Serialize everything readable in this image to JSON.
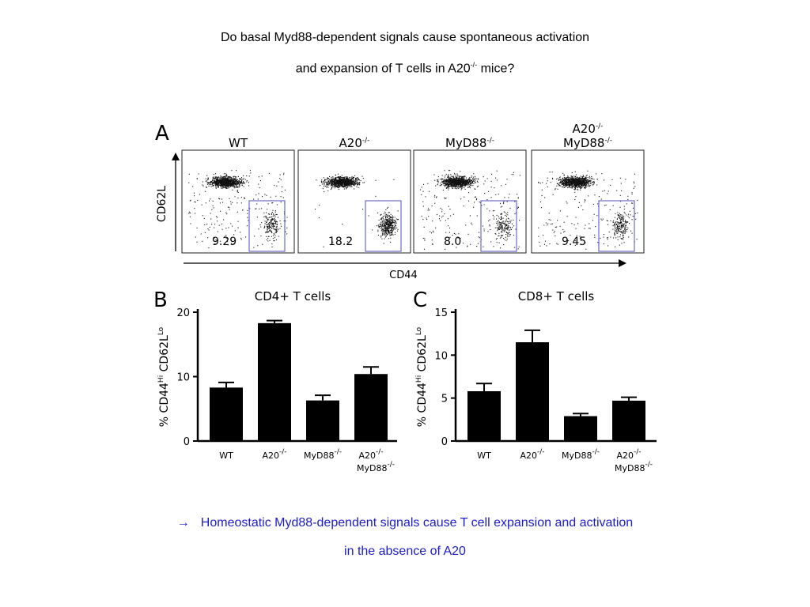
{
  "title": {
    "line1": "Do basal Myd88-dependent signals cause spontaneous activation",
    "line2_prefix": "and expansion of T cells in A20",
    "line2_sup": "-/-",
    "line2_suffix": " mice?"
  },
  "conclusion": {
    "arrow": "→",
    "line1": "Homeostatic Myd88-dependent signals cause T cell expansion and activation",
    "line2": "in the absence of A20"
  },
  "colors": {
    "conclusion": "#1c1ccc",
    "bar": "#000000",
    "gate": "#6a6acc",
    "dots": "#111111"
  },
  "chart_data": [
    {
      "panel": "A",
      "type": "scatter",
      "xlabel": "CD44",
      "ylabel": "CD62L",
      "plots": [
        {
          "title": "WT",
          "title_sup": "",
          "title_line2": "",
          "title_line2_sup": "",
          "gate_percent": "9.29"
        },
        {
          "title": "A20",
          "title_sup": "-/-",
          "title_line2": "",
          "title_line2_sup": "",
          "gate_percent": "18.2"
        },
        {
          "title": "MyD88",
          "title_sup": "-/-",
          "title_line2": "",
          "title_line2_sup": "",
          "gate_percent": "8.0"
        },
        {
          "title": "A20",
          "title_sup": "-/-",
          "title_line2": "MyD88",
          "title_line2_sup": "-/-",
          "gate_percent": "9.45"
        }
      ]
    },
    {
      "panel": "B",
      "type": "bar",
      "title": "CD4+   T cells",
      "ylabel_parts": [
        "% CD44",
        "Hi",
        " CD62L",
        "Lo"
      ],
      "ylim": [
        0,
        20
      ],
      "yticks": [
        "0",
        "10",
        "20"
      ],
      "categories": [
        {
          "name": "WT",
          "sup": "",
          "line2": "",
          "line2_sup": ""
        },
        {
          "name": "A20",
          "sup": "-/-",
          "line2": "",
          "line2_sup": ""
        },
        {
          "name": "MyD88",
          "sup": "-/-",
          "line2": "",
          "line2_sup": ""
        },
        {
          "name": "A20",
          "sup": "-/-",
          "line2": "MyD88",
          "line2_sup": "-/-"
        }
      ],
      "values": [
        8.3,
        18.3,
        6.3,
        10.4
      ],
      "errors": [
        0.8,
        0.4,
        0.8,
        1.1
      ]
    },
    {
      "panel": "C",
      "type": "bar",
      "title": "CD8+  T cells",
      "ylabel_parts": [
        "% CD44",
        "Hi",
        " CD62L",
        "Lo"
      ],
      "ylim": [
        0,
        15
      ],
      "yticks": [
        "0",
        "5",
        "10",
        "15"
      ],
      "categories": [
        {
          "name": "WT",
          "sup": "",
          "line2": "",
          "line2_sup": ""
        },
        {
          "name": "A20",
          "sup": "-/-",
          "line2": "",
          "line2_sup": ""
        },
        {
          "name": "MyD88",
          "sup": "-/-",
          "line2": "",
          "line2_sup": ""
        },
        {
          "name": "A20",
          "sup": "-/-",
          "line2": "MyD88",
          "line2_sup": "-/-"
        }
      ],
      "values": [
        5.8,
        11.5,
        2.9,
        4.7
      ],
      "errors": [
        0.9,
        1.4,
        0.3,
        0.4
      ]
    }
  ]
}
